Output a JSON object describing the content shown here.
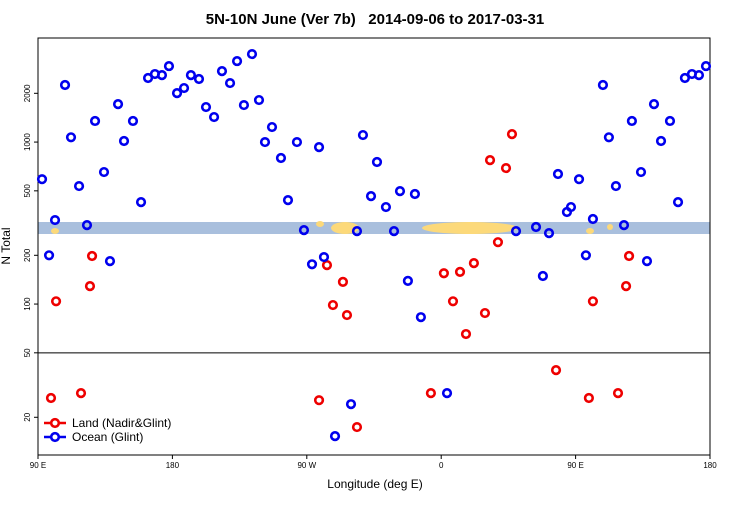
{
  "chart_data": {
    "type": "scatter",
    "title": "5N-10N June (Ver 7b)   2014-09-06 to 2017-03-31",
    "x_label": "Longitude (deg E)",
    "y_label": "N Total",
    "xlim": [
      90,
      540
    ],
    "ylim": [
      11.7,
      4390
    ],
    "log_y": true,
    "xticks": [
      {
        "value": 90,
        "label": "90 E"
      },
      {
        "value": 180,
        "label": "180"
      },
      {
        "value": 270,
        "label": "90 W"
      },
      {
        "value": 360,
        "label": "0"
      },
      {
        "value": 450,
        "label": "90 E"
      },
      {
        "value": 540,
        "label": "180"
      }
    ],
    "yticks": [
      20,
      50,
      100,
      200,
      500,
      1000,
      2000
    ],
    "hline": 50,
    "legend": "lower left",
    "series": [
      {
        "name": "Land (Nadir&Glint)",
        "color": "#ee0000",
        "x": [
          98.7,
          102.1,
          118.8,
          124.8,
          126.2,
          278.2,
          283.5,
          287.5,
          294.2,
          296.9,
          303.6,
          353.1,
          361.8,
          367.9,
          372.6,
          376.6,
          381.9,
          389.3,
          392.7,
          398.0,
          403.4,
          407.4,
          436.9,
          458.9,
          461.6,
          478.4,
          483.8,
          485.8
        ],
        "values": [
          26.3,
          104,
          28.2,
          129,
          198,
          25.5,
          174,
          98.6,
          137,
          85.5,
          17.4,
          28.2,
          155,
          104,
          158,
          65.3,
          179,
          88,
          774,
          241,
          691,
          1120,
          39.1,
          26.3,
          104,
          28.2,
          129,
          198
        ]
      },
      {
        "name": "Ocean (Glint)",
        "color": "#0000ee",
        "x": [
          92.7,
          97.4,
          101.4,
          108.1,
          112.1,
          117.5,
          122.8,
          128.2,
          134.2,
          138.2,
          143.6,
          147.6,
          153.6,
          159.0,
          163.7,
          168.3,
          173.0,
          177.7,
          183.1,
          187.8,
          192.4,
          197.8,
          202.5,
          207.9,
          213.2,
          218.6,
          223.3,
          227.9,
          233.3,
          238.0,
          242.0,
          246.7,
          252.7,
          257.4,
          263.4,
          268.1,
          273.5,
          278.2,
          281.5,
          288.9,
          299.6,
          303.6,
          307.6,
          313.0,
          317.0,
          323.0,
          328.4,
          332.4,
          337.7,
          342.4,
          346.4,
          363.9,
          410.1,
          423.5,
          428.1,
          432.2,
          438.2,
          444.2,
          446.9,
          452.3,
          456.9,
          461.6,
          468.3,
          472.3,
          477.0,
          482.4,
          487.7,
          493.8,
          497.8,
          502.5,
          507.2,
          513.2,
          518.6,
          523.2,
          527.9,
          532.6,
          537.3
        ],
        "values": [
          590,
          200,
          330,
          2250,
          1070,
          535,
          307,
          1350,
          653,
          184,
          1715,
          1015,
          1350,
          426,
          2485,
          2630,
          2590,
          2945,
          2005,
          2155,
          2590,
          2450,
          1645,
          1427,
          2742,
          2313,
          3162,
          1692,
          3493,
          1817,
          1000,
          1238,
          797,
          438,
          1000,
          286,
          176,
          931,
          195,
          15.3,
          24.1,
          282,
          1105,
          464,
          753,
          397,
          282,
          498,
          139,
          478,
          83,
          28.2,
          282,
          299,
          149,
          274,
          635,
          370,
          397,
          590,
          200,
          335,
          2250,
          1070,
          535,
          307,
          1350,
          653,
          184,
          1715,
          1015,
          1350,
          426,
          2485,
          2630,
          2590,
          2945
        ]
      }
    ]
  }
}
